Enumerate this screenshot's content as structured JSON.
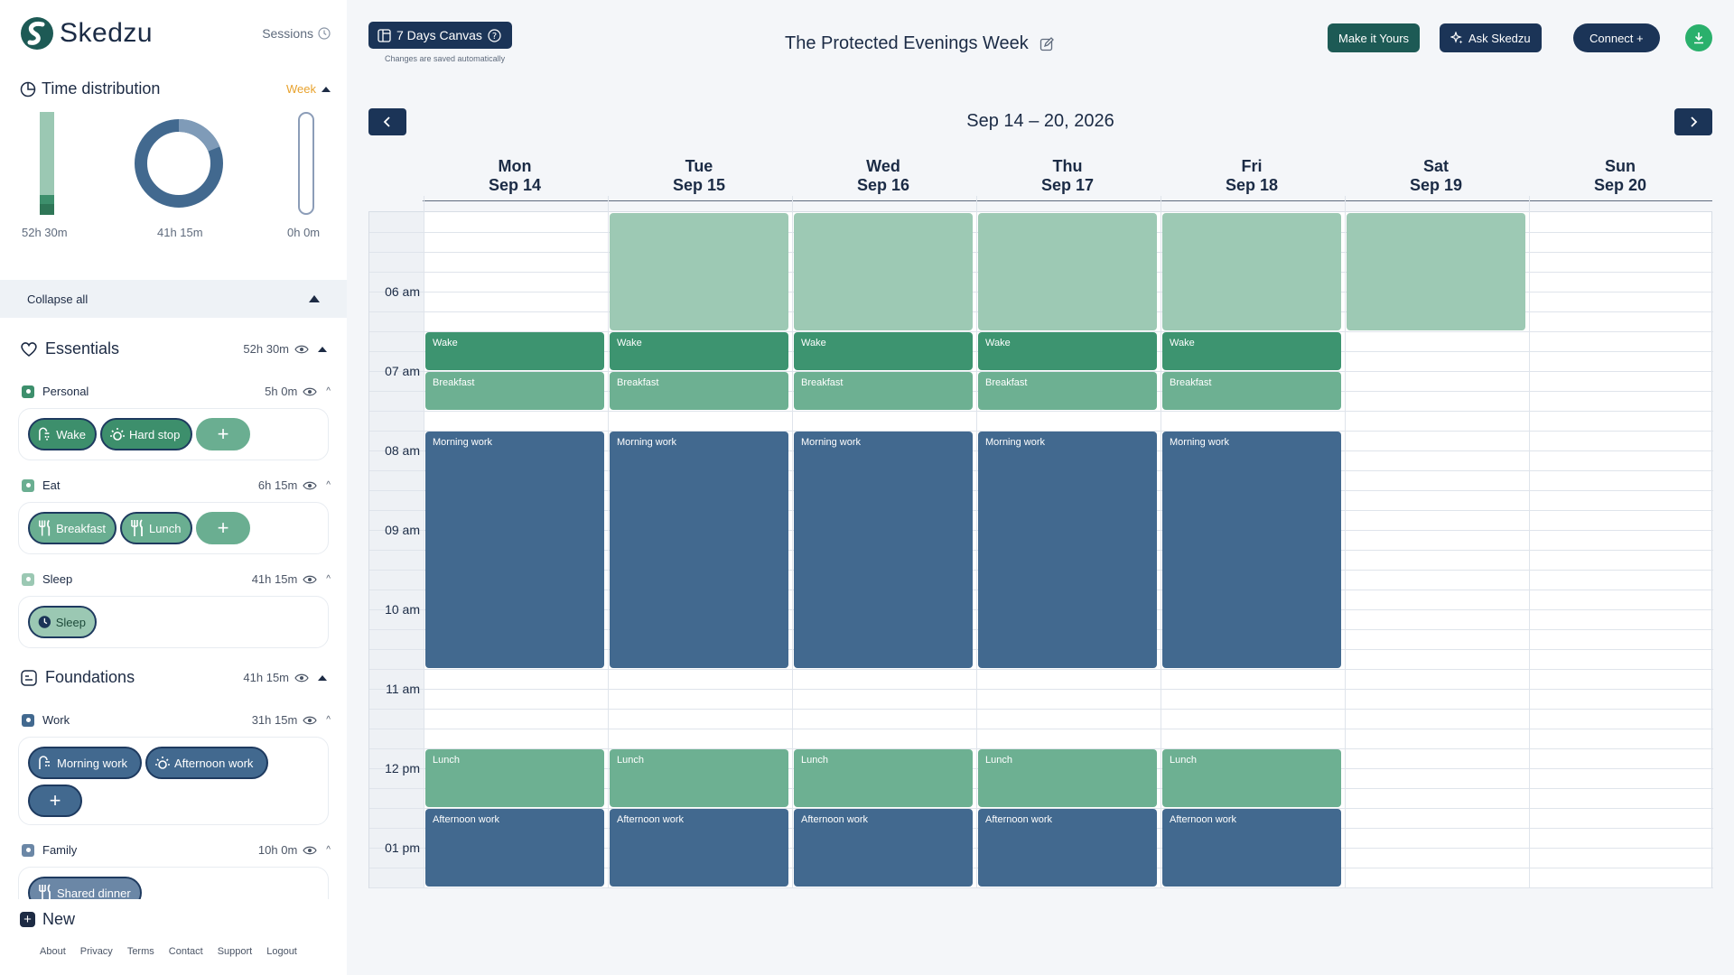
{
  "brand": {
    "name": "Skedzu"
  },
  "sidebar": {
    "sessions_label": "Sessions",
    "time_distribution": {
      "title": "Time distribution",
      "period": "Week",
      "bars": [
        {
          "label": "52h 30m",
          "fill_fraction": 1.0
        },
        {
          "label": "41h 15m"
        },
        {
          "label": "0h 0m",
          "fill_fraction": 0
        }
      ]
    },
    "collapse_all": "Collapse all",
    "groups": [
      {
        "title": "Essentials",
        "hours": "52h 30m",
        "subgroups": [
          {
            "name": "Personal",
            "hours": "5h 0m",
            "color": "#3d8f6c",
            "chips": [
              "Wake",
              "Hard stop"
            ],
            "has_add": true
          },
          {
            "name": "Eat",
            "hours": "6h 15m",
            "color": "#6aae91",
            "chips": [
              "Breakfast",
              "Lunch"
            ],
            "has_add": true
          },
          {
            "name": "Sleep",
            "hours": "41h 15m",
            "color": "#9bc8b3",
            "chips": [
              "Sleep"
            ],
            "has_add": false
          }
        ]
      },
      {
        "title": "Foundations",
        "hours": "41h 15m",
        "subgroups": [
          {
            "name": "Work",
            "hours": "31h 15m",
            "color": "#42698f",
            "chips": [
              "Morning work",
              "Afternoon work"
            ],
            "has_add": true
          },
          {
            "name": "Family",
            "hours": "10h 0m",
            "color": "#6b87a6",
            "chips": [
              "Shared dinner"
            ],
            "has_add": false
          }
        ]
      }
    ],
    "new_label": "New",
    "footer_links": [
      "About",
      "Privacy",
      "Terms",
      "Contact",
      "Support",
      "Logout"
    ]
  },
  "toolbar": {
    "canvas_label": "7 Days Canvas",
    "saved_note": "Changes are saved automatically",
    "week_title": "The Protected Evenings Week",
    "make_it_yours": "Make it Yours",
    "ask": "Ask Skedzu",
    "connect": "Connect +"
  },
  "calendar": {
    "range": "Sep 14 – 20, 2026",
    "days": [
      {
        "dow": "Mon",
        "date": "Sep 14"
      },
      {
        "dow": "Tue",
        "date": "Sep 15"
      },
      {
        "dow": "Wed",
        "date": "Sep 16"
      },
      {
        "dow": "Thu",
        "date": "Sep 17"
      },
      {
        "dow": "Fri",
        "date": "Sep 18"
      },
      {
        "dow": "Sat",
        "date": "Sep 19"
      },
      {
        "dow": "Sun",
        "date": "Sep 20"
      }
    ],
    "hour_labels": [
      "06 am",
      "07 am",
      "08 am",
      "09 am",
      "10 am",
      "11 am",
      "12 pm",
      "01 pm"
    ],
    "visible_start_hour": 5,
    "events": [
      {
        "title": "",
        "day": 1,
        "start": 5.0,
        "end": 6.5,
        "kind": "sleep"
      },
      {
        "title": "",
        "day": 2,
        "start": 5.0,
        "end": 6.5,
        "kind": "sleep"
      },
      {
        "title": "",
        "day": 3,
        "start": 5.0,
        "end": 6.5,
        "kind": "sleep"
      },
      {
        "title": "",
        "day": 4,
        "start": 5.0,
        "end": 6.5,
        "kind": "sleep"
      },
      {
        "title": "",
        "day": 5,
        "start": 5.0,
        "end": 6.5,
        "kind": "sleep"
      },
      {
        "title": "Wake",
        "day": 0,
        "start": 6.5,
        "end": 7.0,
        "kind": "personal"
      },
      {
        "title": "Wake",
        "day": 1,
        "start": 6.5,
        "end": 7.0,
        "kind": "personal"
      },
      {
        "title": "Wake",
        "day": 2,
        "start": 6.5,
        "end": 7.0,
        "kind": "personal"
      },
      {
        "title": "Wake",
        "day": 3,
        "start": 6.5,
        "end": 7.0,
        "kind": "personal"
      },
      {
        "title": "Wake",
        "day": 4,
        "start": 6.5,
        "end": 7.0,
        "kind": "personal"
      },
      {
        "title": "Breakfast",
        "day": 0,
        "start": 7.0,
        "end": 7.5,
        "kind": "eat"
      },
      {
        "title": "Breakfast",
        "day": 1,
        "start": 7.0,
        "end": 7.5,
        "kind": "eat"
      },
      {
        "title": "Breakfast",
        "day": 2,
        "start": 7.0,
        "end": 7.5,
        "kind": "eat"
      },
      {
        "title": "Breakfast",
        "day": 3,
        "start": 7.0,
        "end": 7.5,
        "kind": "eat"
      },
      {
        "title": "Breakfast",
        "day": 4,
        "start": 7.0,
        "end": 7.5,
        "kind": "eat"
      },
      {
        "title": "Morning work",
        "day": 0,
        "start": 7.75,
        "end": 10.75,
        "kind": "work"
      },
      {
        "title": "Morning work",
        "day": 1,
        "start": 7.75,
        "end": 10.75,
        "kind": "work"
      },
      {
        "title": "Morning work",
        "day": 2,
        "start": 7.75,
        "end": 10.75,
        "kind": "work"
      },
      {
        "title": "Morning work",
        "day": 3,
        "start": 7.75,
        "end": 10.75,
        "kind": "work"
      },
      {
        "title": "Morning work",
        "day": 4,
        "start": 7.75,
        "end": 10.75,
        "kind": "work"
      },
      {
        "title": "Lunch",
        "day": 0,
        "start": 11.75,
        "end": 12.5,
        "kind": "eat"
      },
      {
        "title": "Lunch",
        "day": 1,
        "start": 11.75,
        "end": 12.5,
        "kind": "eat"
      },
      {
        "title": "Lunch",
        "day": 2,
        "start": 11.75,
        "end": 12.5,
        "kind": "eat"
      },
      {
        "title": "Lunch",
        "day": 3,
        "start": 11.75,
        "end": 12.5,
        "kind": "eat"
      },
      {
        "title": "Lunch",
        "day": 4,
        "start": 11.75,
        "end": 12.5,
        "kind": "eat"
      },
      {
        "title": "Afternoon work",
        "day": 0,
        "start": 12.5,
        "end": 13.5,
        "kind": "work"
      },
      {
        "title": "Afternoon work",
        "day": 1,
        "start": 12.5,
        "end": 13.5,
        "kind": "work"
      },
      {
        "title": "Afternoon work",
        "day": 2,
        "start": 12.5,
        "end": 13.5,
        "kind": "work"
      },
      {
        "title": "Afternoon work",
        "day": 3,
        "start": 12.5,
        "end": 13.5,
        "kind": "work"
      },
      {
        "title": "Afternoon work",
        "day": 4,
        "start": 12.5,
        "end": 13.5,
        "kind": "work"
      }
    ]
  },
  "colors": {
    "sleep": "#9dc9b4",
    "personal": "#3d9470",
    "eat": "#6db092",
    "work": "#42698f",
    "navy": "#1b3457",
    "teal": "#1d5a55"
  }
}
